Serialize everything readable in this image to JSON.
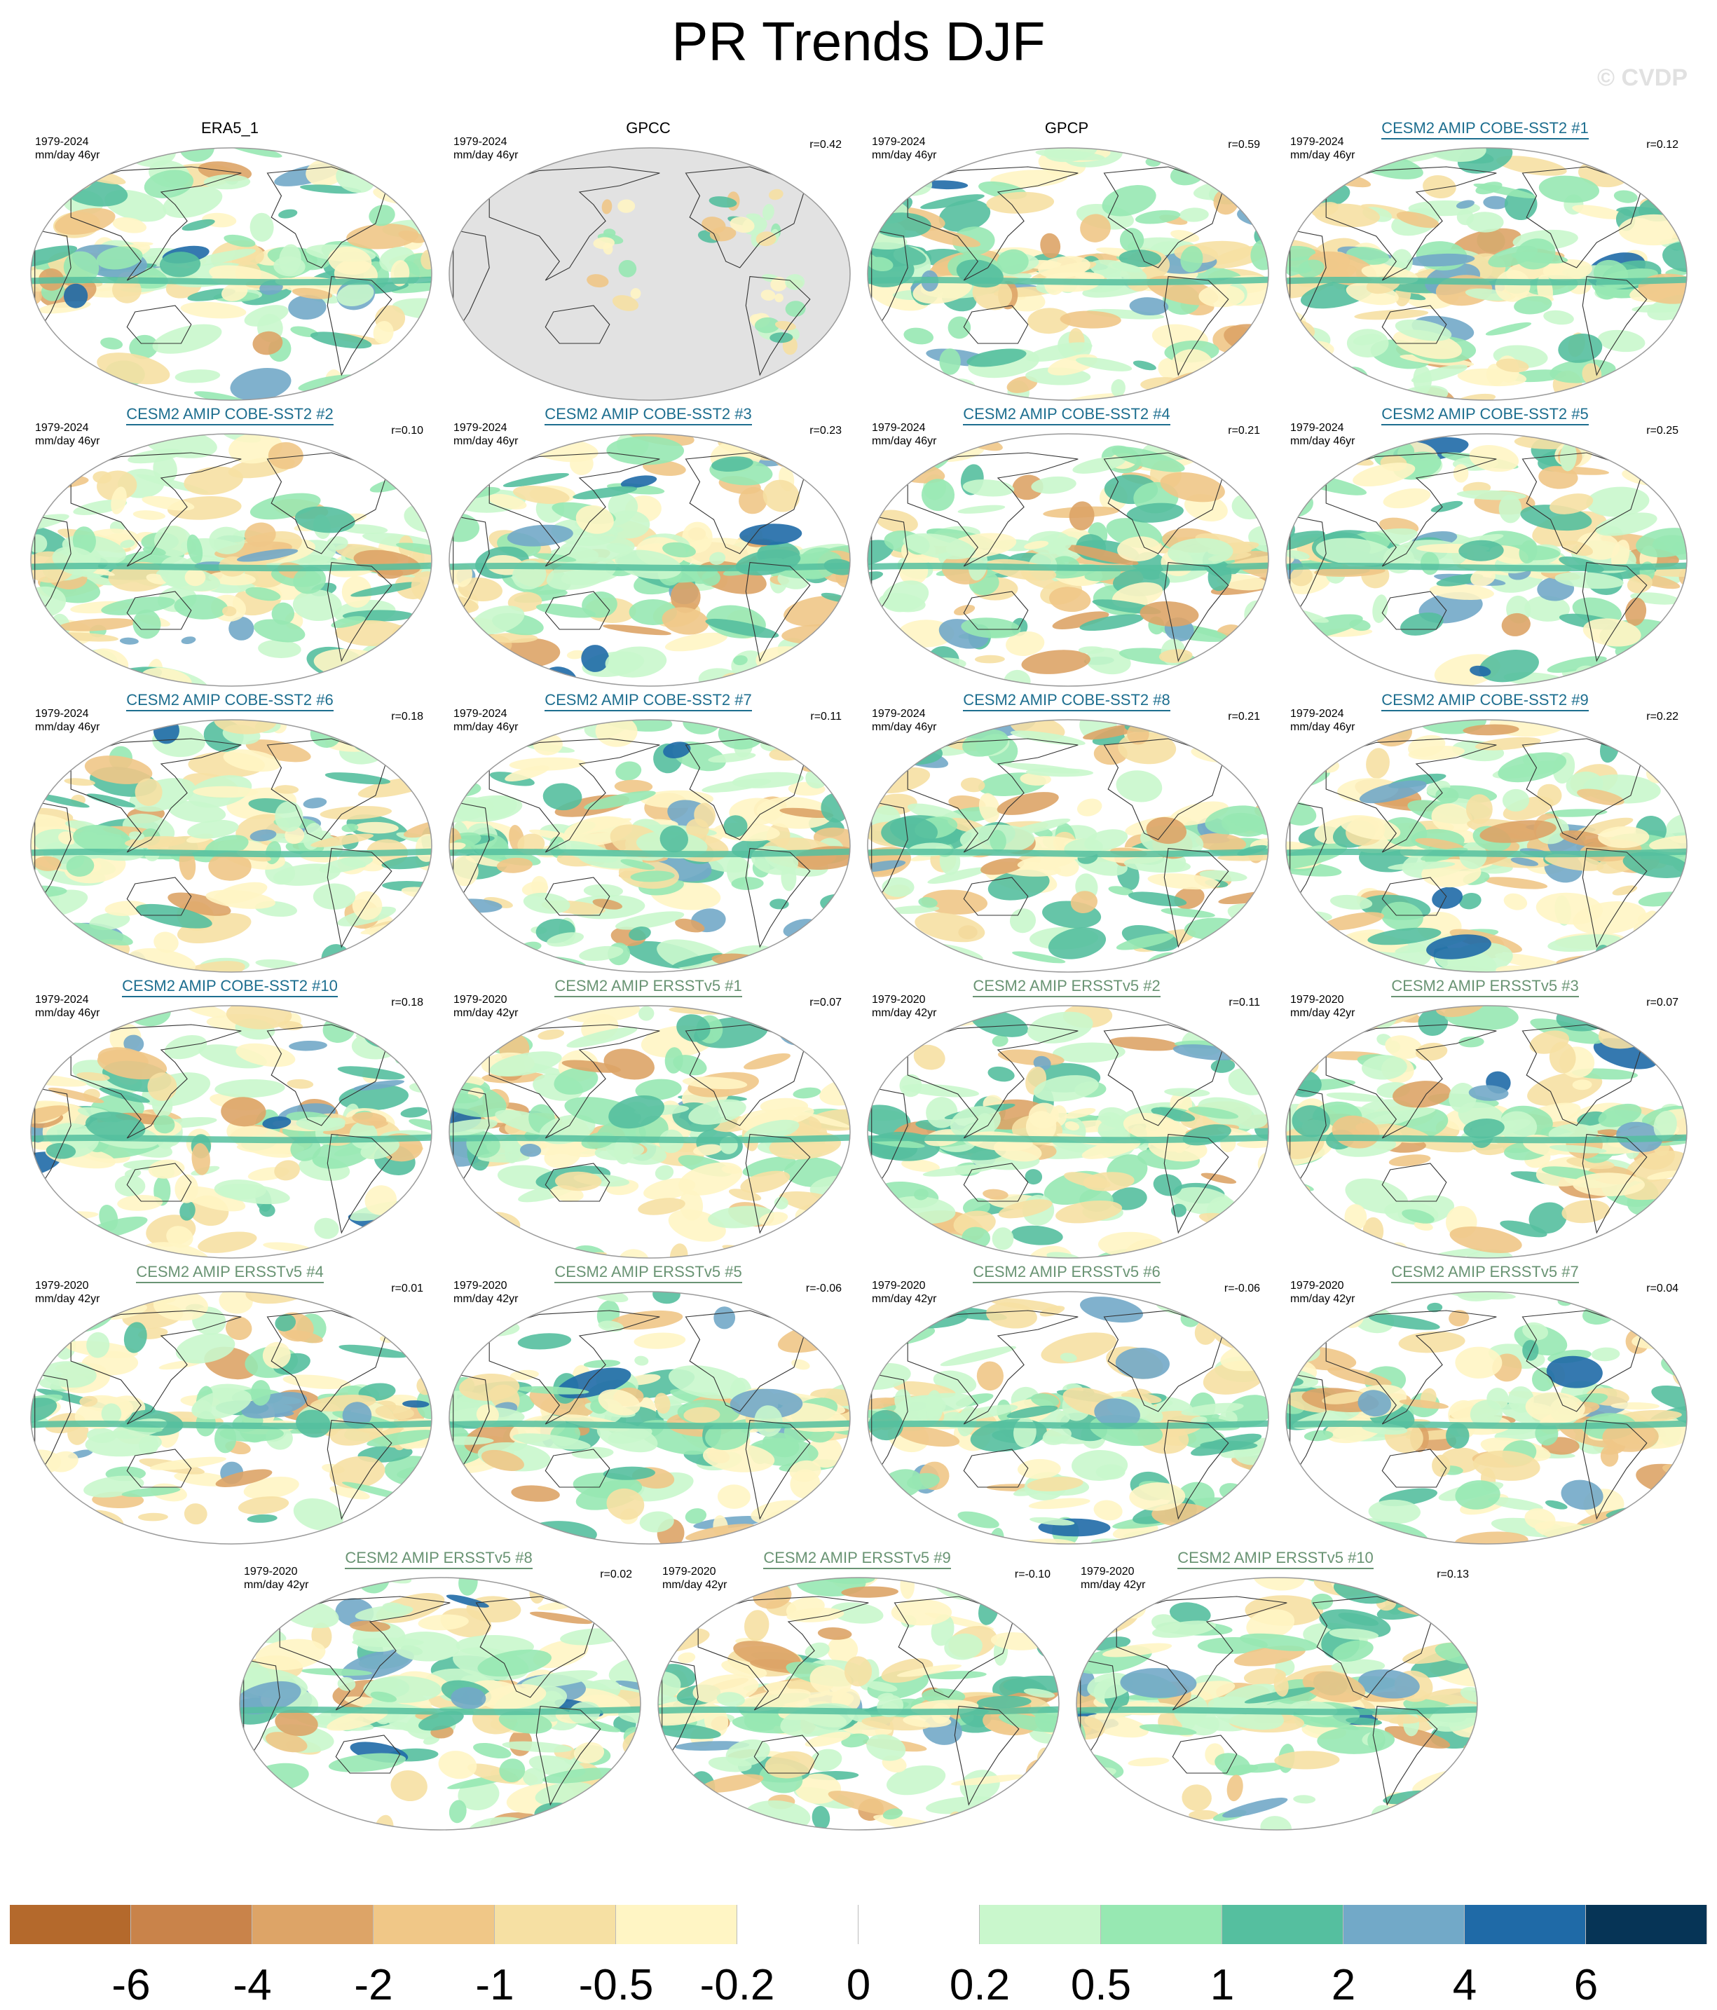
{
  "title": "PR Trends DJF",
  "watermark": "© CVDP",
  "colorbar": {
    "colors": [
      "#b4692c",
      "#c9834a",
      "#dda467",
      "#f0c787",
      "#f6e0a3",
      "#fff5c4",
      "#ffffff",
      "#ffffff",
      "#c9f7cc",
      "#97e8b2",
      "#55bf9f",
      "#72a9c8",
      "#1f6aa7",
      "#063456"
    ],
    "labels": [
      "-6",
      "-4",
      "-2",
      "-1",
      "-0.5",
      "-0.2",
      "0",
      "0.2",
      "0.5",
      "1",
      "2",
      "4",
      "6"
    ]
  },
  "panels": [
    {
      "title": "ERA5_1",
      "group": "obs",
      "years": "1979-2024",
      "units": "mm/day 46yr",
      "r": ""
    },
    {
      "title": "GPCC",
      "group": "obs",
      "years": "1979-2024",
      "units": "mm/day 46yr",
      "r": "r=0.42"
    },
    {
      "title": "GPCP",
      "group": "obs",
      "years": "1979-2024",
      "units": "mm/day 46yr",
      "r": "r=0.59"
    },
    {
      "title": "CESM2 AMIP COBE-SST2 #1",
      "group": "cobe",
      "years": "1979-2024",
      "units": "mm/day 46yr",
      "r": "r=0.12"
    },
    {
      "title": "CESM2 AMIP COBE-SST2 #2",
      "group": "cobe",
      "years": "1979-2024",
      "units": "mm/day 46yr",
      "r": "r=0.10"
    },
    {
      "title": "CESM2 AMIP COBE-SST2 #3",
      "group": "cobe",
      "years": "1979-2024",
      "units": "mm/day 46yr",
      "r": "r=0.23"
    },
    {
      "title": "CESM2 AMIP COBE-SST2 #4",
      "group": "cobe",
      "years": "1979-2024",
      "units": "mm/day 46yr",
      "r": "r=0.21"
    },
    {
      "title": "CESM2 AMIP COBE-SST2 #5",
      "group": "cobe",
      "years": "1979-2024",
      "units": "mm/day 46yr",
      "r": "r=0.25"
    },
    {
      "title": "CESM2 AMIP COBE-SST2 #6",
      "group": "cobe",
      "years": "1979-2024",
      "units": "mm/day 46yr",
      "r": "r=0.18"
    },
    {
      "title": "CESM2 AMIP COBE-SST2 #7",
      "group": "cobe",
      "years": "1979-2024",
      "units": "mm/day 46yr",
      "r": "r=0.11"
    },
    {
      "title": "CESM2 AMIP COBE-SST2 #8",
      "group": "cobe",
      "years": "1979-2024",
      "units": "mm/day 46yr",
      "r": "r=0.21"
    },
    {
      "title": "CESM2 AMIP COBE-SST2 #9",
      "group": "cobe",
      "years": "1979-2024",
      "units": "mm/day 46yr",
      "r": "r=0.22"
    },
    {
      "title": "CESM2 AMIP COBE-SST2 #10",
      "group": "cobe",
      "years": "1979-2024",
      "units": "mm/day 46yr",
      "r": "r=0.18"
    },
    {
      "title": "CESM2 AMIP ERSSTv5 #1",
      "group": "ersst",
      "years": "1979-2020",
      "units": "mm/day 42yr",
      "r": "r=0.07"
    },
    {
      "title": "CESM2 AMIP ERSSTv5 #2",
      "group": "ersst",
      "years": "1979-2020",
      "units": "mm/day 42yr",
      "r": "r=0.11"
    },
    {
      "title": "CESM2 AMIP ERSSTv5 #3",
      "group": "ersst",
      "years": "1979-2020",
      "units": "mm/day 42yr",
      "r": "r=0.07"
    },
    {
      "title": "CESM2 AMIP ERSSTv5 #4",
      "group": "ersst",
      "years": "1979-2020",
      "units": "mm/day 42yr",
      "r": "r=0.01"
    },
    {
      "title": "CESM2 AMIP ERSSTv5 #5",
      "group": "ersst",
      "years": "1979-2020",
      "units": "mm/day 42yr",
      "r": "r=-0.06"
    },
    {
      "title": "CESM2 AMIP ERSSTv5 #6",
      "group": "ersst",
      "years": "1979-2020",
      "units": "mm/day 42yr",
      "r": "r=-0.06"
    },
    {
      "title": "CESM2 AMIP ERSSTv5 #7",
      "group": "ersst",
      "years": "1979-2020",
      "units": "mm/day 42yr",
      "r": "r=0.04"
    },
    {
      "title": "CESM2 AMIP ERSSTv5 #8",
      "group": "ersst",
      "years": "1979-2020",
      "units": "mm/day 42yr",
      "r": "r=0.02"
    },
    {
      "title": "CESM2 AMIP ERSSTv5 #9",
      "group": "ersst",
      "years": "1979-2020",
      "units": "mm/day 42yr",
      "r": "r=-0.10"
    },
    {
      "title": "CESM2 AMIP ERSSTv5 #10",
      "group": "ersst",
      "years": "1979-2020",
      "units": "mm/day 42yr",
      "r": "r=0.13"
    }
  ]
}
